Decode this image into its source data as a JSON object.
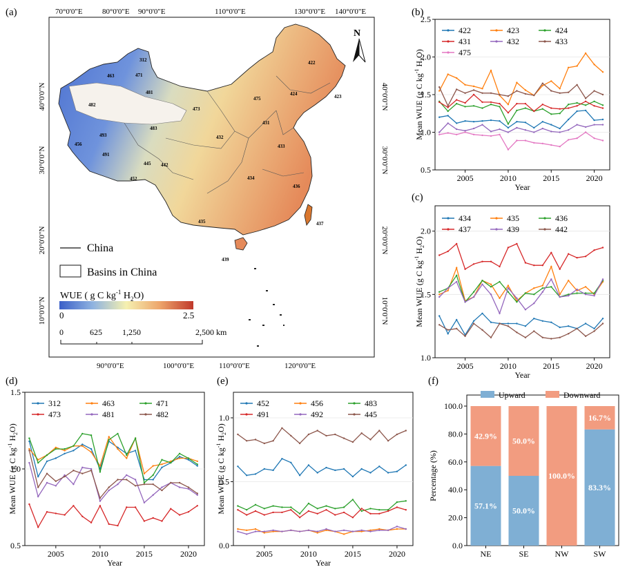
{
  "panel_labels": {
    "a": "(a)",
    "b": "(b)",
    "c": "(c)",
    "d": "(d)",
    "e": "(e)",
    "f": "(f)"
  },
  "map": {
    "top_lon_labels": [
      "70°0'0\"E",
      "80°0'0\"E",
      "90°0'0\"E",
      "110°0'0\"E",
      "130°0'0\"E",
      "140°0'0\"E"
    ],
    "bottom_lon_labels": [
      "90°0'0\"E",
      "100°0'0\"E",
      "110°0'0\"E",
      "120°0'0\"E"
    ],
    "left_lat_labels": [
      "40°0'0\"N",
      "30°0'0\"N",
      "20°0'0\"N",
      "10°0'0\"N"
    ],
    "right_lat_labels": [
      "40°0'0\"N",
      "30°0'0\"N",
      "20°0'0\"N",
      "10°0'0\"N"
    ],
    "north_label": "N",
    "legend_china": "China",
    "legend_basins": "Basins in China",
    "colorbar_title": "WUE  ( g C kg",
    "colorbar_title_sup": "-1",
    "colorbar_title_end": " H",
    "colorbar_title_sub": "2",
    "colorbar_title_tail": "O)",
    "colorbar_min": "0",
    "colorbar_max": "2.5",
    "scale_ticks": [
      "0",
      "625",
      "1,250",
      "2,500 km"
    ],
    "basin_labels": [
      "312",
      "463",
      "471",
      "481",
      "482",
      "473",
      "483",
      "475",
      "422",
      "424",
      "423",
      "431",
      "432",
      "433",
      "493",
      "456",
      "491",
      "445",
      "442",
      "452",
      "434",
      "436",
      "435",
      "437",
      "439"
    ],
    "colors": {
      "low": "#3b5fc8",
      "mid": "#f5f0b0",
      "high": "#c0392b"
    }
  },
  "common": {
    "xlabel": "Year",
    "ylabel": "Mean WUE (g C kg",
    "ylabel_sup": "-1",
    "ylabel_end": " H",
    "ylabel_sub": "2",
    "ylabel_tail": "O)"
  },
  "chart_data": [
    {
      "id": "b",
      "type": "line",
      "x": [
        2002,
        2003,
        2004,
        2005,
        2006,
        2007,
        2008,
        2009,
        2010,
        2011,
        2012,
        2013,
        2014,
        2015,
        2016,
        2017,
        2018,
        2019,
        2020,
        2021
      ],
      "ylim": [
        0.5,
        2.5
      ],
      "yticks": [
        "0.5",
        "1.0",
        "1.5",
        "2.0",
        "2.5"
      ],
      "xticks": [
        "2005",
        "2010",
        "2015",
        "2020"
      ],
      "xlim": [
        2001.5,
        2021.8
      ],
      "series": [
        {
          "name": "422",
          "color": "#1f77b4",
          "values": [
            1.2,
            1.22,
            1.12,
            1.15,
            1.14,
            1.15,
            1.16,
            1.15,
            1.06,
            1.14,
            1.13,
            1.06,
            1.14,
            1.1,
            1.05,
            1.17,
            1.28,
            1.29,
            1.16,
            1.17
          ]
        },
        {
          "name": "423",
          "color": "#ff7f0e",
          "values": [
            1.55,
            1.77,
            1.72,
            1.63,
            1.61,
            1.58,
            1.82,
            1.49,
            1.37,
            1.66,
            1.56,
            1.49,
            1.62,
            1.68,
            1.58,
            1.86,
            1.88,
            2.05,
            1.9,
            1.8
          ]
        },
        {
          "name": "424",
          "color": "#2ca02c",
          "values": [
            1.41,
            1.28,
            1.38,
            1.34,
            1.35,
            1.32,
            1.37,
            1.34,
            1.11,
            1.29,
            1.32,
            1.28,
            1.31,
            1.24,
            1.25,
            1.37,
            1.39,
            1.36,
            1.41,
            1.36
          ]
        },
        {
          "name": "431",
          "color": "#d62728",
          "values": [
            1.4,
            1.33,
            1.43,
            1.39,
            1.5,
            1.4,
            1.4,
            1.38,
            1.26,
            1.38,
            1.38,
            1.28,
            1.37,
            1.32,
            1.31,
            1.32,
            1.35,
            1.41,
            1.35,
            1.32
          ]
        },
        {
          "name": "432",
          "color": "#9467bd",
          "values": [
            1.0,
            1.12,
            1.04,
            1.02,
            1.05,
            1.1,
            1.01,
            1.04,
            1.0,
            1.06,
            1.03,
            1.0,
            1.05,
            1.01,
            1.0,
            1.03,
            1.1,
            1.07,
            1.1,
            1.1
          ]
        },
        {
          "name": "433",
          "color": "#8c564b",
          "values": [
            1.6,
            1.35,
            1.57,
            1.52,
            1.56,
            1.52,
            1.52,
            1.5,
            1.48,
            1.55,
            1.51,
            1.49,
            1.65,
            1.55,
            1.52,
            1.53,
            1.63,
            1.45,
            1.55,
            1.5
          ]
        },
        {
          "name": "475",
          "color": "#e377c2",
          "values": [
            0.97,
            0.99,
            0.97,
            1.0,
            0.97,
            0.96,
            0.95,
            0.97,
            0.77,
            0.89,
            0.89,
            0.86,
            0.85,
            0.83,
            0.81,
            0.9,
            0.92,
            1.0,
            0.92,
            0.89
          ]
        }
      ]
    },
    {
      "id": "c",
      "type": "line",
      "x": [
        2002,
        2003,
        2004,
        2005,
        2006,
        2007,
        2008,
        2009,
        2010,
        2011,
        2012,
        2013,
        2014,
        2015,
        2016,
        2017,
        2018,
        2019,
        2020,
        2021
      ],
      "ylim": [
        1.0,
        2.2
      ],
      "yticks": [
        "1.0",
        "1.5",
        "2.0"
      ],
      "xticks": [
        "2005",
        "2010",
        "2015",
        "2020"
      ],
      "xlim": [
        2001.5,
        2021.8
      ],
      "series": [
        {
          "name": "434",
          "color": "#1f77b4",
          "values": [
            1.33,
            1.19,
            1.3,
            1.18,
            1.29,
            1.35,
            1.28,
            1.27,
            1.27,
            1.27,
            1.25,
            1.31,
            1.29,
            1.28,
            1.24,
            1.25,
            1.23,
            1.27,
            1.23,
            1.31
          ]
        },
        {
          "name": "435",
          "color": "#ff7f0e",
          "values": [
            1.5,
            1.53,
            1.71,
            1.45,
            1.48,
            1.61,
            1.58,
            1.47,
            1.57,
            1.45,
            1.51,
            1.55,
            1.57,
            1.72,
            1.5,
            1.61,
            1.53,
            1.56,
            1.5,
            1.6
          ]
        },
        {
          "name": "436",
          "color": "#2ca02c",
          "values": [
            1.52,
            1.55,
            1.65,
            1.44,
            1.52,
            1.61,
            1.56,
            1.6,
            1.52,
            1.44,
            1.51,
            1.5,
            1.55,
            1.56,
            1.48,
            1.5,
            1.51,
            1.51,
            1.51,
            1.61
          ]
        },
        {
          "name": "437",
          "color": "#d62728",
          "values": [
            1.81,
            1.84,
            1.9,
            1.7,
            1.74,
            1.76,
            1.76,
            1.72,
            1.87,
            1.9,
            1.75,
            1.73,
            1.73,
            1.83,
            1.7,
            1.82,
            1.79,
            1.8,
            1.85,
            1.87
          ]
        },
        {
          "name": "439",
          "color": "#9467bd",
          "values": [
            1.48,
            1.55,
            1.6,
            1.44,
            1.48,
            1.58,
            1.5,
            1.35,
            1.55,
            1.47,
            1.38,
            1.43,
            1.52,
            1.62,
            1.48,
            1.49,
            1.54,
            1.5,
            1.49,
            1.62
          ]
        },
        {
          "name": "442",
          "color": "#8c564b",
          "values": [
            1.26,
            1.22,
            1.23,
            1.17,
            1.27,
            1.22,
            1.16,
            1.27,
            1.25,
            1.2,
            1.16,
            1.21,
            1.16,
            1.15,
            1.16,
            1.19,
            1.23,
            1.17,
            1.21,
            1.27
          ]
        }
      ]
    },
    {
      "id": "d",
      "type": "line",
      "x": [
        2002,
        2003,
        2004,
        2005,
        2006,
        2007,
        2008,
        2009,
        2010,
        2011,
        2012,
        2013,
        2014,
        2015,
        2016,
        2017,
        2018,
        2019,
        2020,
        2021
      ],
      "ylim": [
        0.5,
        1.5
      ],
      "yticks": [
        "0.5",
        "1.0",
        "1.5"
      ],
      "xticks": [
        "2005",
        "2010",
        "2015",
        "2020"
      ],
      "xlim": [
        2001.5,
        2021.8
      ],
      "series": [
        {
          "name": "312",
          "color": "#1f77b4",
          "values": [
            1.18,
            0.95,
            1.05,
            1.07,
            1.1,
            1.12,
            1.16,
            1.13,
            1.0,
            1.18,
            1.14,
            1.1,
            1.12,
            0.93,
            0.93,
            1.01,
            1.04,
            1.08,
            1.06,
            1.02
          ]
        },
        {
          "name": "463",
          "color": "#ff7f0e",
          "values": [
            1.13,
            1.06,
            1.09,
            1.14,
            1.12,
            1.15,
            1.15,
            1.11,
            1.02,
            1.21,
            1.13,
            1.07,
            1.2,
            0.97,
            1.02,
            1.03,
            1.05,
            1.07,
            1.07,
            1.05
          ]
        },
        {
          "name": "471",
          "color": "#2ca02c",
          "values": [
            1.2,
            1.04,
            1.09,
            1.13,
            1.13,
            1.15,
            1.23,
            1.22,
            0.98,
            1.19,
            1.23,
            1.09,
            1.2,
            0.91,
            0.96,
            1.06,
            1.04,
            1.1,
            1.07,
            1.03
          ]
        },
        {
          "name": "473",
          "color": "#d62728",
          "values": [
            0.77,
            0.62,
            0.72,
            0.71,
            0.7,
            0.76,
            0.69,
            0.65,
            0.76,
            0.64,
            0.63,
            0.75,
            0.75,
            0.66,
            0.68,
            0.66,
            0.74,
            0.7,
            0.72,
            0.76
          ]
        },
        {
          "name": "481",
          "color": "#9467bd",
          "values": [
            1.04,
            0.82,
            0.91,
            0.89,
            0.96,
            0.9,
            1.01,
            1.0,
            0.79,
            0.86,
            0.9,
            0.96,
            0.93,
            0.78,
            0.83,
            0.88,
            0.91,
            0.88,
            0.87,
            0.83
          ]
        },
        {
          "name": "482",
          "color": "#8c564b",
          "values": [
            1.12,
            0.88,
            0.97,
            0.92,
            0.95,
            0.99,
            0.97,
            0.99,
            0.81,
            0.88,
            0.93,
            0.93,
            0.89,
            0.9,
            0.9,
            0.86,
            0.91,
            0.91,
            0.88,
            0.84
          ]
        }
      ]
    },
    {
      "id": "e",
      "type": "line",
      "x": [
        2002,
        2003,
        2004,
        2005,
        2006,
        2007,
        2008,
        2009,
        2010,
        2011,
        2012,
        2013,
        2014,
        2015,
        2016,
        2017,
        2018,
        2019,
        2020,
        2021
      ],
      "ylim": [
        0.0,
        1.2
      ],
      "yticks": [
        "0.0",
        "0.5",
        "1.0"
      ],
      "xticks": [
        "2005",
        "2010",
        "2015",
        "2020"
      ],
      "xlim": [
        2001.5,
        2021.8
      ],
      "series": [
        {
          "name": "452",
          "color": "#1f77b4",
          "values": [
            0.62,
            0.55,
            0.56,
            0.6,
            0.59,
            0.68,
            0.65,
            0.55,
            0.63,
            0.57,
            0.61,
            0.59,
            0.6,
            0.54,
            0.6,
            0.57,
            0.62,
            0.57,
            0.58,
            0.63
          ]
        },
        {
          "name": "456",
          "color": "#ff7f0e",
          "values": [
            0.13,
            0.12,
            0.13,
            0.1,
            0.11,
            0.11,
            0.12,
            0.11,
            0.12,
            0.1,
            0.12,
            0.11,
            0.09,
            0.11,
            0.11,
            0.12,
            0.13,
            0.12,
            0.13,
            0.13
          ]
        },
        {
          "name": "483",
          "color": "#2ca02c",
          "values": [
            0.31,
            0.28,
            0.32,
            0.29,
            0.31,
            0.3,
            0.3,
            0.25,
            0.33,
            0.29,
            0.31,
            0.29,
            0.3,
            0.36,
            0.27,
            0.29,
            0.28,
            0.28,
            0.34,
            0.35
          ]
        },
        {
          "name": "491",
          "color": "#d62728",
          "values": [
            0.28,
            0.24,
            0.27,
            0.24,
            0.26,
            0.26,
            0.28,
            0.22,
            0.27,
            0.25,
            0.28,
            0.24,
            0.26,
            0.22,
            0.29,
            0.25,
            0.25,
            0.27,
            0.3,
            0.28
          ]
        },
        {
          "name": "492",
          "color": "#9467bd",
          "values": [
            0.11,
            0.09,
            0.11,
            0.11,
            0.12,
            0.11,
            0.12,
            0.11,
            0.12,
            0.11,
            0.13,
            0.11,
            0.12,
            0.11,
            0.12,
            0.11,
            0.12,
            0.12,
            0.15,
            0.13
          ]
        },
        {
          "name": "445",
          "color": "#8c564b",
          "values": [
            0.87,
            0.82,
            0.83,
            0.8,
            0.82,
            0.92,
            0.86,
            0.8,
            0.87,
            0.9,
            0.86,
            0.87,
            0.84,
            0.81,
            0.88,
            0.83,
            0.9,
            0.82,
            0.87,
            0.9
          ]
        }
      ]
    },
    {
      "id": "f",
      "type": "bar",
      "stacked": true,
      "categories": [
        "NE",
        "SE",
        "NW",
        "SW"
      ],
      "ylabel": "Percentage (%)",
      "ylim": [
        0,
        100
      ],
      "yticks": [
        "0.0",
        "20.0",
        "40.0",
        "60.0",
        "80.0",
        "100.0"
      ],
      "series": [
        {
          "name": "Upward",
          "color": "#7fafd4",
          "values": [
            57.1,
            50.0,
            0.0,
            83.3
          ],
          "labels": [
            "57.1%",
            "50.0%",
            "",
            "83.3%"
          ]
        },
        {
          "name": "Downward",
          "color": "#f29c80",
          "values": [
            42.9,
            50.0,
            100.0,
            16.7
          ],
          "labels": [
            "42.9%",
            "50.0%",
            "100.0%",
            "16.7%"
          ]
        }
      ]
    }
  ]
}
